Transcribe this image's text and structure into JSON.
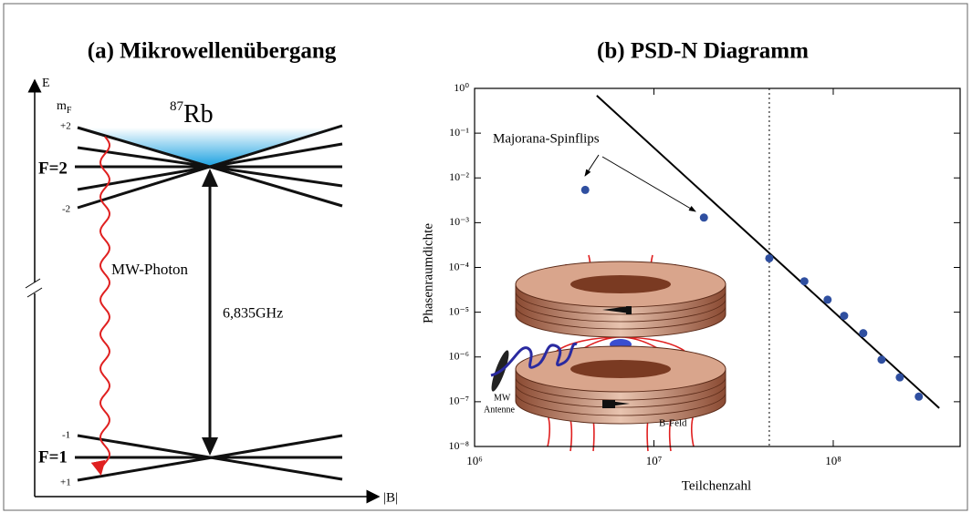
{
  "diagram": {
    "title": "(a) Mikrowellenübergang",
    "energy_axis": "E",
    "field_axis": "|B|",
    "mf_label": {
      "main": "m",
      "sub": "F"
    },
    "isotope": {
      "mass": "87",
      "symbol": "Rb"
    },
    "upper_state": "F=2",
    "upper_top": "+2",
    "upper_bottom": "-2",
    "lower_state": "F=1",
    "lower_top": "-1",
    "lower_bottom": "+1",
    "photon": "MW-Photon",
    "frequency": "6,835GHz"
  },
  "chart_data": {
    "type": "scatter",
    "title": "(b) PSD-N Diagramm",
    "x_label": "Teilchenzahl",
    "y_label": "Phasenraumdichte",
    "log_x": true,
    "log_y": true,
    "xlim": [
      1000000,
      510000000
    ],
    "ylim": [
      1e-08,
      1
    ],
    "xticks": [
      {
        "value": 1000000,
        "label": "10⁶"
      },
      {
        "value": 10000000,
        "label": "10⁷"
      },
      {
        "value": 100000000,
        "label": "10⁸"
      }
    ],
    "yticks": [
      {
        "value": 1e-08,
        "label": "10⁻⁸"
      },
      {
        "value": 1e-07,
        "label": "10⁻⁷"
      },
      {
        "value": 1e-06,
        "label": "10⁻⁶"
      },
      {
        "value": 1e-05,
        "label": "10⁻⁵"
      },
      {
        "value": 0.0001,
        "label": "10⁻⁴"
      },
      {
        "value": 0.001,
        "label": "10⁻³"
      },
      {
        "value": 0.01,
        "label": "10⁻²"
      },
      {
        "value": 0.1,
        "label": "10⁻¹"
      },
      {
        "value": 1,
        "label": "10⁰"
      }
    ],
    "series": [
      {
        "color": "#2f4fa0",
        "x": [
          4140000,
          19000000,
          44000000,
          69000000,
          93000000,
          115000000,
          147000000,
          186000000,
          235000000,
          300000000
        ],
        "values": [
          0.0054,
          0.0013,
          0.00016,
          4.9e-05,
          1.9e-05,
          8.3e-06,
          3.4e-06,
          8.7e-07,
          3.5e-07,
          1.3e-07
        ]
      }
    ],
    "fit_line": {
      "color": "#000000",
      "x": [
        4800000,
        390000000
      ],
      "values": [
        0.69,
        7.2e-08
      ]
    },
    "vline": 44000000,
    "annotation": "Majorana-Spinflips",
    "inset_labels": [
      "MW",
      "Antenne",
      "B-Feld"
    ]
  }
}
